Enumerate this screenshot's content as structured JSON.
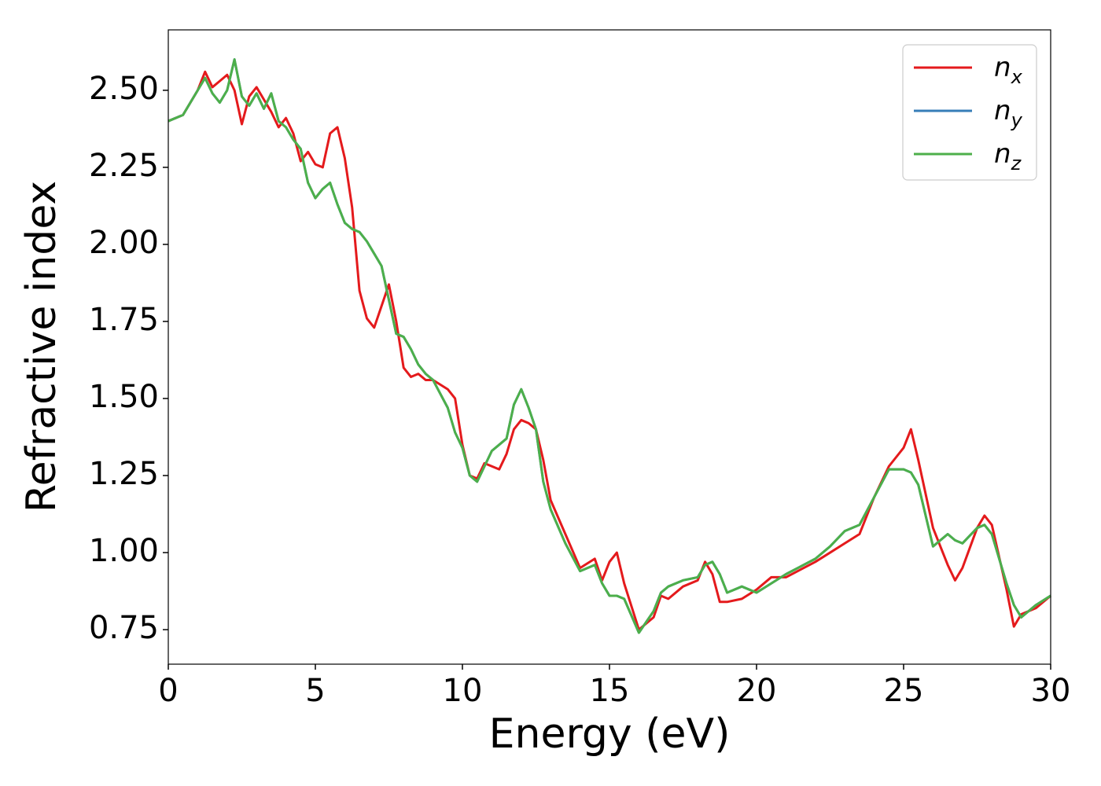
{
  "chart_data": {
    "type": "line",
    "xlabel": "Energy (eV)",
    "ylabel": "Refractive index",
    "xlim": [
      0,
      30
    ],
    "ylim": [
      0.638,
      2.696
    ],
    "xticks": [
      0,
      5,
      10,
      15,
      20,
      25,
      30
    ],
    "yticks": [
      0.75,
      {
        "value": 1.0,
        "label": "1.00"
      },
      {
        "value": 1.25,
        "label": "1.25"
      },
      {
        "value": 1.5,
        "label": "1.50"
      },
      {
        "value": 1.75,
        "label": "1.75"
      },
      {
        "value": 2.0,
        "label": "2.00"
      },
      {
        "value": 2.25,
        "label": "2.25"
      },
      {
        "value": 2.5,
        "label": "2.50"
      }
    ],
    "legend": "upper right",
    "x": [
      0,
      0.5,
      1.0,
      1.25,
      1.5,
      1.75,
      2.0,
      2.25,
      2.5,
      2.75,
      3.0,
      3.25,
      3.5,
      3.75,
      4.0,
      4.25,
      4.5,
      4.75,
      5.0,
      5.25,
      5.5,
      5.75,
      6.0,
      6.25,
      6.5,
      6.75,
      7.0,
      7.25,
      7.5,
      7.75,
      8.0,
      8.25,
      8.5,
      8.75,
      9.0,
      9.5,
      9.75,
      10.0,
      10.25,
      10.5,
      10.75,
      11.0,
      11.25,
      11.5,
      11.75,
      12.0,
      12.25,
      12.5,
      12.75,
      13.0,
      13.5,
      14.0,
      14.5,
      14.75,
      15.0,
      15.25,
      15.5,
      16.0,
      16.5,
      16.75,
      17.0,
      17.5,
      18.0,
      18.25,
      18.5,
      18.75,
      19.0,
      19.5,
      20.0,
      20.5,
      21.0,
      22.0,
      22.5,
      23.0,
      23.5,
      24.0,
      24.5,
      25.0,
      25.25,
      25.5,
      26.0,
      26.5,
      26.75,
      27.0,
      27.5,
      27.75,
      28.0,
      28.5,
      28.75,
      29.0,
      29.5,
      30.0
    ],
    "series": [
      {
        "name": "n_x",
        "color": "#e41a1c",
        "values": [
          2.4,
          2.42,
          2.5,
          2.56,
          2.51,
          2.53,
          2.55,
          2.5,
          2.39,
          2.48,
          2.51,
          2.47,
          2.43,
          2.38,
          2.41,
          2.36,
          2.27,
          2.3,
          2.26,
          2.25,
          2.36,
          2.38,
          2.28,
          2.12,
          1.85,
          1.76,
          1.73,
          1.8,
          1.87,
          1.75,
          1.6,
          1.57,
          1.58,
          1.56,
          1.56,
          1.53,
          1.5,
          1.35,
          1.25,
          1.24,
          1.29,
          1.28,
          1.27,
          1.32,
          1.4,
          1.43,
          1.42,
          1.4,
          1.3,
          1.17,
          1.06,
          0.95,
          0.98,
          0.91,
          0.97,
          1.0,
          0.9,
          0.75,
          0.79,
          0.86,
          0.85,
          0.89,
          0.91,
          0.97,
          0.93,
          0.84,
          0.84,
          0.85,
          0.88,
          0.92,
          0.92,
          0.97,
          1.0,
          1.03,
          1.06,
          1.18,
          1.28,
          1.34,
          1.4,
          1.3,
          1.08,
          0.96,
          0.91,
          0.95,
          1.08,
          1.12,
          1.09,
          0.88,
          0.76,
          0.8,
          0.82,
          0.86
        ]
      },
      {
        "name": "n_y",
        "color": "#377eb8",
        "values": [
          2.4,
          2.42,
          2.5,
          2.54,
          2.49,
          2.46,
          2.5,
          2.6,
          2.48,
          2.45,
          2.49,
          2.44,
          2.49,
          2.4,
          2.38,
          2.34,
          2.31,
          2.2,
          2.15,
          2.18,
          2.2,
          2.13,
          2.07,
          2.05,
          2.04,
          2.01,
          1.97,
          1.93,
          1.82,
          1.71,
          1.7,
          1.66,
          1.61,
          1.58,
          1.56,
          1.47,
          1.39,
          1.34,
          1.25,
          1.23,
          1.28,
          1.33,
          1.35,
          1.37,
          1.48,
          1.53,
          1.47,
          1.4,
          1.23,
          1.14,
          1.03,
          0.94,
          0.96,
          0.9,
          0.86,
          0.86,
          0.85,
          0.74,
          0.81,
          0.87,
          0.89,
          0.91,
          0.92,
          0.96,
          0.97,
          0.93,
          0.87,
          0.89,
          0.87,
          0.9,
          0.93,
          0.98,
          1.02,
          1.07,
          1.09,
          1.18,
          1.27,
          1.27,
          1.26,
          1.22,
          1.02,
          1.06,
          1.04,
          1.03,
          1.08,
          1.09,
          1.06,
          0.9,
          0.83,
          0.79,
          0.83,
          0.86
        ]
      },
      {
        "name": "n_z",
        "color": "#4daf4a",
        "values": [
          2.4,
          2.42,
          2.5,
          2.54,
          2.49,
          2.46,
          2.5,
          2.6,
          2.48,
          2.45,
          2.49,
          2.44,
          2.49,
          2.4,
          2.38,
          2.34,
          2.31,
          2.2,
          2.15,
          2.18,
          2.2,
          2.13,
          2.07,
          2.05,
          2.04,
          2.01,
          1.97,
          1.93,
          1.82,
          1.71,
          1.7,
          1.66,
          1.61,
          1.58,
          1.56,
          1.47,
          1.39,
          1.34,
          1.25,
          1.23,
          1.28,
          1.33,
          1.35,
          1.37,
          1.48,
          1.53,
          1.47,
          1.4,
          1.23,
          1.14,
          1.03,
          0.94,
          0.96,
          0.9,
          0.86,
          0.86,
          0.85,
          0.74,
          0.81,
          0.87,
          0.89,
          0.91,
          0.92,
          0.96,
          0.97,
          0.93,
          0.87,
          0.89,
          0.87,
          0.9,
          0.93,
          0.98,
          1.02,
          1.07,
          1.09,
          1.18,
          1.27,
          1.27,
          1.26,
          1.22,
          1.02,
          1.06,
          1.04,
          1.03,
          1.08,
          1.09,
          1.06,
          0.9,
          0.83,
          0.79,
          0.83,
          0.86
        ]
      }
    ]
  }
}
